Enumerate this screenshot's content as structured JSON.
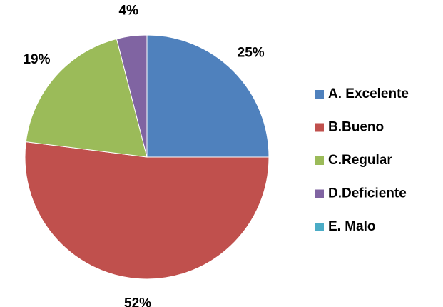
{
  "chart_data": {
    "type": "pie",
    "categories": [
      "A. Excelente",
      "B.Bueno",
      "C.Regular",
      "D.Deficiente",
      "E. Malo"
    ],
    "values": [
      25,
      52,
      19,
      4,
      0
    ],
    "value_labels": [
      "25%",
      "52%",
      "19%",
      "4%",
      null
    ],
    "colors": [
      "#4f81bd",
      "#c0504d",
      "#9bbb59",
      "#8064a2",
      "#4bacc6"
    ],
    "legend": "right"
  }
}
